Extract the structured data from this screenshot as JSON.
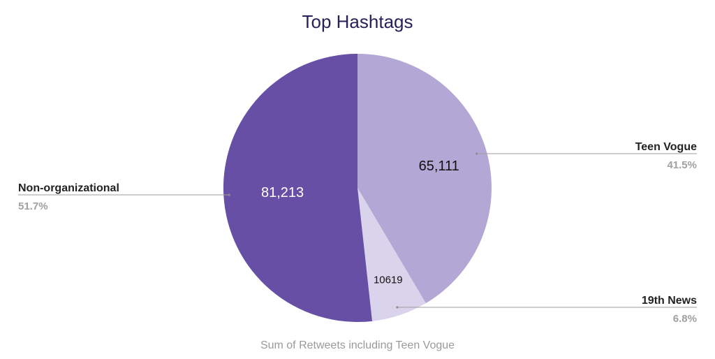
{
  "chart_data": {
    "type": "pie",
    "title": "Top Hashtags",
    "caption": "Sum of Retweets including Teen Vogue",
    "slices": [
      {
        "name": "Teen Vogue",
        "value": 65111,
        "value_label": "65,111",
        "percent_label": "41.5%",
        "color": "#b3a7d6",
        "label_color": "#111111"
      },
      {
        "name": "19th News",
        "value": 10619,
        "value_label": "10619",
        "percent_label": "6.8%",
        "color": "#d9d3eb",
        "label_color": "#111111"
      },
      {
        "name": "Non-organizational",
        "value": 81213,
        "value_label": "81,213",
        "percent_label": "51.7%",
        "color": "#684fa6",
        "label_color": "#ffffff"
      }
    ],
    "legend": "callouts"
  }
}
